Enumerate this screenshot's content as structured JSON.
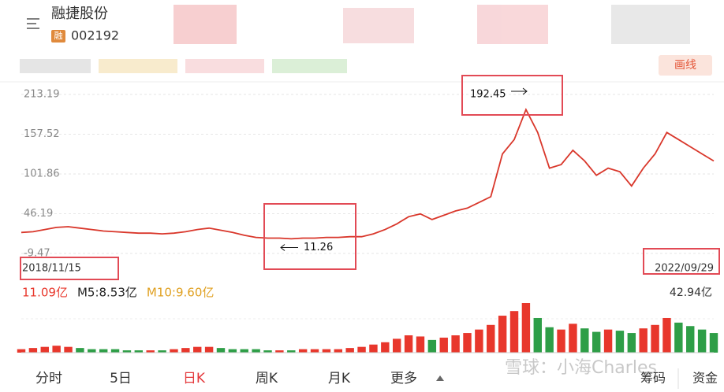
{
  "header": {
    "name": "融捷股份",
    "badge": "融",
    "code": "002192",
    "draw_line": "画线"
  },
  "chart_data": [
    {
      "type": "line",
      "ylim": [
        -9.47,
        213.19
      ],
      "yticks": [
        213.19,
        157.52,
        101.86,
        46.19,
        -9.47
      ],
      "grid": true,
      "date_labels": [
        "2018/11/15",
        "2022/09/29"
      ],
      "annotations": [
        {
          "text": "192.45",
          "index": 43
        },
        {
          "text": "11.26",
          "index": 22
        }
      ],
      "series": [
        {
          "color": "#d9372b",
          "values": [
            20,
            21,
            24,
            27,
            28,
            26,
            24,
            22,
            21,
            20,
            19,
            19,
            18,
            19,
            21,
            24,
            26,
            23,
            20,
            16,
            13,
            12,
            12,
            11,
            12,
            12,
            13,
            13,
            14,
            14,
            18,
            24,
            32,
            42,
            46,
            38,
            44,
            50,
            54,
            62,
            70,
            130,
            150,
            192,
            160,
            110,
            115,
            135,
            120,
            100,
            110,
            105,
            85,
            110,
            130,
            160,
            150,
            140,
            130,
            120
          ]
        }
      ]
    },
    {
      "type": "bar",
      "ylim": [
        0,
        42.94
      ],
      "max_label": "42.94亿",
      "up_color": "#e8372c",
      "down_color": "#2e9e47",
      "legend": [
        {
          "text": "11.09亿",
          "color": "#e8372c"
        },
        {
          "text": "M5:8.53亿",
          "color": "#222222"
        },
        {
          "text": "M10:9.60亿",
          "color": "#e0a020"
        }
      ],
      "values": [
        3,
        4,
        5,
        6,
        5,
        4,
        3,
        3,
        3,
        2,
        2,
        2,
        2,
        3,
        4,
        5,
        5,
        4,
        3,
        3,
        3,
        2,
        2,
        2,
        3,
        3,
        3,
        3,
        4,
        5,
        7,
        9,
        12,
        15,
        14,
        11,
        13,
        15,
        17,
        20,
        24,
        32,
        36,
        42.94,
        30,
        22,
        20,
        25,
        21,
        18,
        20,
        19,
        17,
        21,
        24,
        30,
        26,
        23,
        20,
        17
      ]
    }
  ],
  "tabs": {
    "items": [
      "分时",
      "5日",
      "日K",
      "周K",
      "月K",
      "更多"
    ],
    "selected": 2,
    "right": [
      "筹码",
      "资金"
    ]
  },
  "watermark": "雪球：小海Charles"
}
